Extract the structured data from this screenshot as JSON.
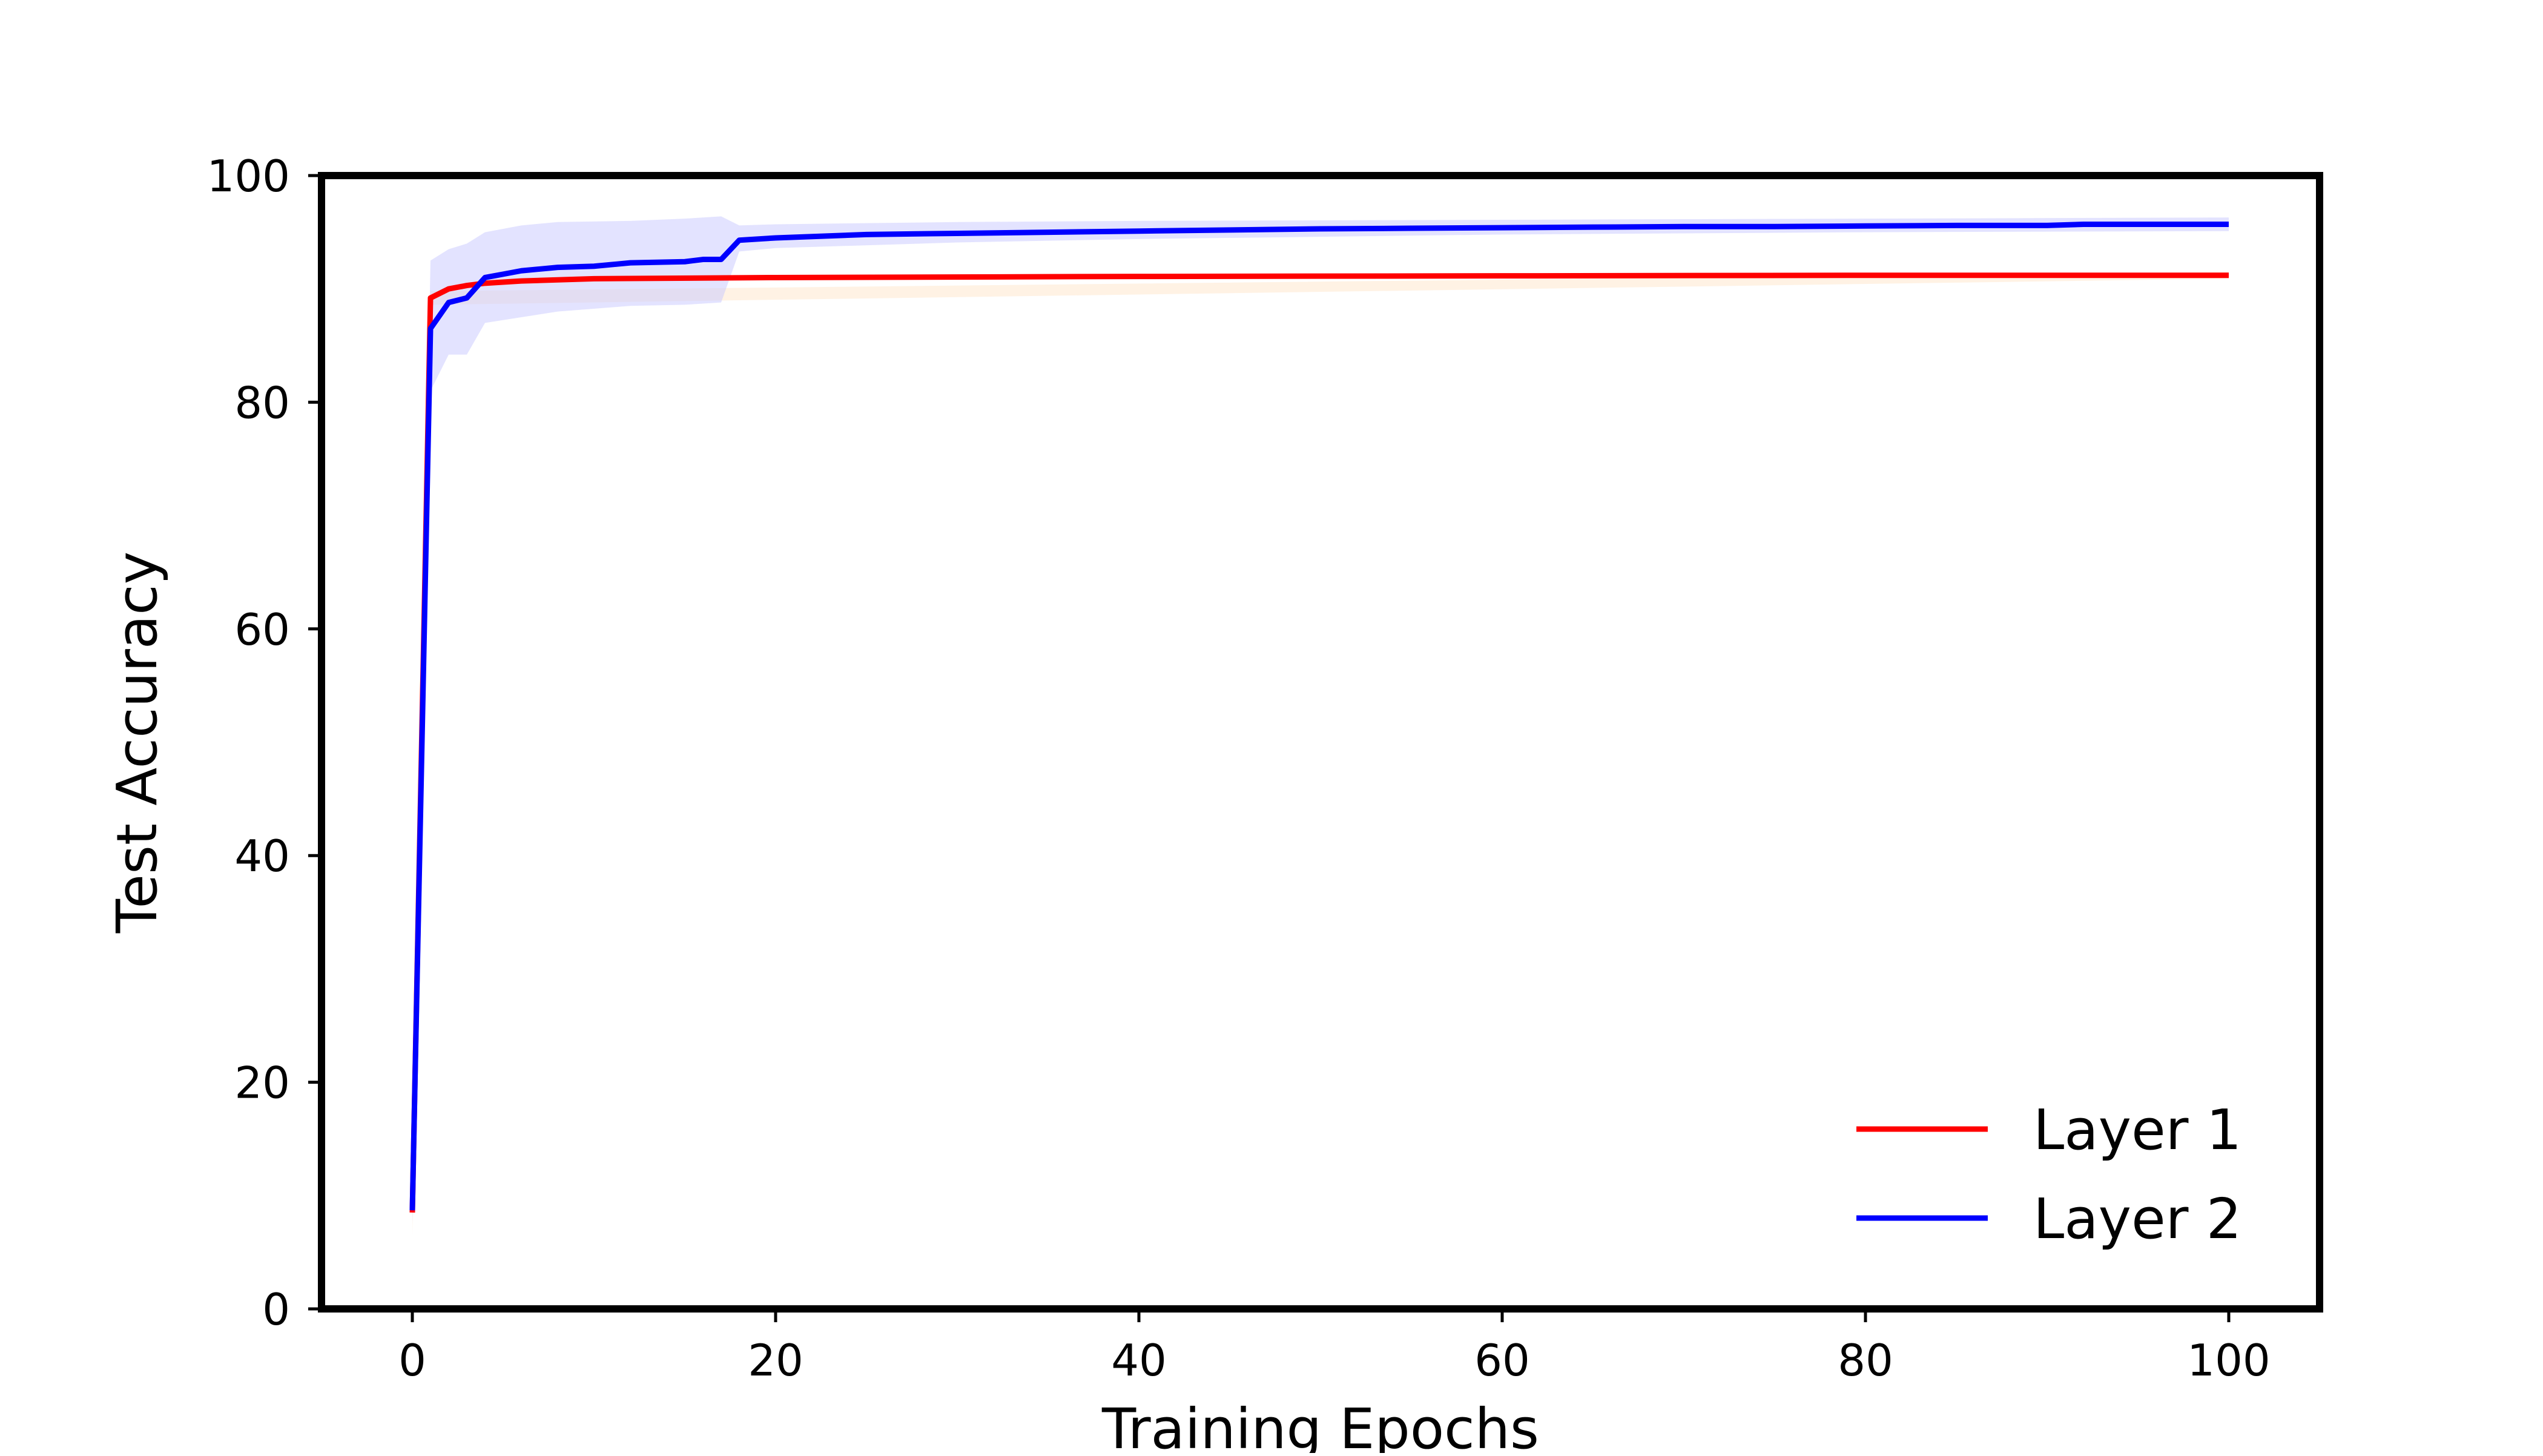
{
  "chart_data": {
    "type": "line",
    "title": "",
    "xlabel": "Training Epochs",
    "ylabel": "Test Accuracy",
    "xlim": [
      -5,
      105
    ],
    "ylim": [
      0,
      100
    ],
    "x_ticks": [
      0,
      20,
      40,
      60,
      80,
      100
    ],
    "y_ticks": [
      0,
      20,
      40,
      60,
      80,
      100
    ],
    "grid": false,
    "legend_position": "lower-right",
    "series": [
      {
        "name": "Layer 1",
        "color": "#ff0000",
        "points": [
          [
            0,
            8.5
          ],
          [
            1,
            89.2
          ],
          [
            2,
            90.0
          ],
          [
            3,
            90.3
          ],
          [
            4,
            90.5
          ],
          [
            6,
            90.7
          ],
          [
            10,
            90.9
          ],
          [
            20,
            91.0
          ],
          [
            40,
            91.1
          ],
          [
            60,
            91.15
          ],
          [
            80,
            91.2
          ],
          [
            100,
            91.2
          ]
        ],
        "band": [
          [
            0,
            6.5,
            10.5
          ],
          [
            1,
            88.6,
            89.8
          ],
          [
            100,
            90.9,
            91.5
          ]
        ]
      },
      {
        "name": "Layer 2",
        "color": "#0000ff",
        "band_color": "#c8c8ff",
        "points": [
          [
            0,
            8.7
          ],
          [
            1,
            86.5
          ],
          [
            2,
            88.8
          ],
          [
            3,
            89.2
          ],
          [
            4,
            91.0
          ],
          [
            5,
            91.3
          ],
          [
            6,
            91.6
          ],
          [
            8,
            91.9
          ],
          [
            10,
            92.0
          ],
          [
            12,
            92.3
          ],
          [
            15,
            92.4
          ],
          [
            16,
            92.6
          ],
          [
            17,
            92.6
          ],
          [
            18,
            94.3
          ],
          [
            20,
            94.5
          ],
          [
            25,
            94.8
          ],
          [
            30,
            94.9
          ],
          [
            35,
            95.0
          ],
          [
            40,
            95.1
          ],
          [
            45,
            95.2
          ],
          [
            50,
            95.3
          ],
          [
            55,
            95.35
          ],
          [
            60,
            95.4
          ],
          [
            65,
            95.45
          ],
          [
            70,
            95.5
          ],
          [
            75,
            95.5
          ],
          [
            80,
            95.55
          ],
          [
            85,
            95.6
          ],
          [
            90,
            95.6
          ],
          [
            92,
            95.7
          ],
          [
            95,
            95.7
          ],
          [
            100,
            95.7
          ]
        ],
        "band": [
          [
            0,
            7.5,
            9.5
          ],
          [
            1,
            81.0,
            92.5
          ],
          [
            2,
            84.2,
            93.5
          ],
          [
            3,
            84.2,
            94.0
          ],
          [
            4,
            87.0,
            95.0
          ],
          [
            6,
            87.5,
            95.6
          ],
          [
            8,
            88.0,
            95.9
          ],
          [
            12,
            88.5,
            96.0
          ],
          [
            15,
            88.6,
            96.2
          ],
          [
            17,
            88.8,
            96.4
          ],
          [
            18,
            93.3,
            95.6
          ],
          [
            20,
            93.6,
            95.7
          ],
          [
            30,
            94.1,
            95.9
          ],
          [
            40,
            94.4,
            96.0
          ],
          [
            60,
            94.8,
            96.1
          ],
          [
            80,
            95.0,
            96.2
          ],
          [
            100,
            95.1,
            96.3
          ]
        ]
      }
    ]
  }
}
